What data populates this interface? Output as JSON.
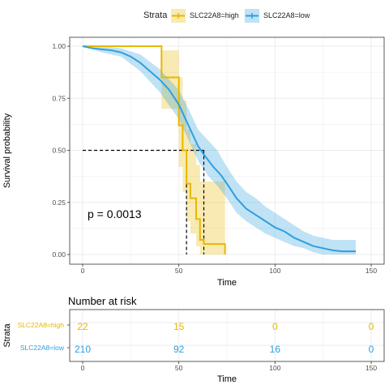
{
  "legend": {
    "title": "Strata",
    "items": [
      {
        "label": "SLC22A8=high",
        "color": "#E7B800"
      },
      {
        "label": "SLC22A8=low",
        "color": "#2E9FDF"
      }
    ]
  },
  "annotation": {
    "pvalue": "p = 0.0013"
  },
  "chart_data": [
    {
      "type": "line",
      "kind": "kaplan-meier survival curve with confidence bands",
      "xlabel": "Time",
      "ylabel": "Survival probability",
      "xlim": [
        0,
        150
      ],
      "ylim": [
        0,
        1
      ],
      "x_ticks": [
        "0",
        "50",
        "100",
        "150"
      ],
      "y_ticks": [
        "0.00",
        "0.25",
        "0.50",
        "0.75",
        "1.00"
      ],
      "grid": true,
      "legend_position": "top",
      "median_line": {
        "y": 0.5,
        "x_medians": [
          54,
          63
        ]
      },
      "series": [
        {
          "name": "SLC22A8=high",
          "color": "#E7B800",
          "points": [
            [
              0,
              1.0
            ],
            [
              41,
              1.0
            ],
            [
              41,
              0.85
            ],
            [
              50,
              0.85
            ],
            [
              50,
              0.62
            ],
            [
              52,
              0.62
            ],
            [
              52,
              0.5
            ],
            [
              54,
              0.5
            ],
            [
              54,
              0.34
            ],
            [
              56,
              0.34
            ],
            [
              56,
              0.27
            ],
            [
              59,
              0.27
            ],
            [
              59,
              0.17
            ],
            [
              61,
              0.17
            ],
            [
              61,
              0.07
            ],
            [
              63,
              0.07
            ],
            [
              63,
              0.05
            ],
            [
              74,
              0.05
            ],
            [
              74,
              0.0
            ]
          ],
          "ci_upper": [
            [
              0,
              1.0
            ],
            [
              41,
              1.0
            ],
            [
              41,
              0.98
            ],
            [
              50,
              0.98
            ],
            [
              50,
              0.85
            ],
            [
              52,
              0.85
            ],
            [
              52,
              0.74
            ],
            [
              54,
              0.74
            ],
            [
              54,
              0.6
            ],
            [
              56,
              0.6
            ],
            [
              56,
              0.53
            ],
            [
              59,
              0.53
            ],
            [
              59,
              0.43
            ],
            [
              61,
              0.43
            ],
            [
              61,
              0.35
            ],
            [
              74,
              0.35
            ]
          ],
          "ci_lower": [
            [
              0,
              1.0
            ],
            [
              41,
              1.0
            ],
            [
              41,
              0.7
            ],
            [
              50,
              0.7
            ],
            [
              50,
              0.42
            ],
            [
              52,
              0.42
            ],
            [
              52,
              0.3
            ],
            [
              54,
              0.3
            ],
            [
              54,
              0.16
            ],
            [
              56,
              0.16
            ],
            [
              56,
              0.1
            ],
            [
              59,
              0.1
            ],
            [
              59,
              0.04
            ],
            [
              61,
              0.04
            ],
            [
              61,
              0.0
            ],
            [
              74,
              0.0
            ]
          ]
        },
        {
          "name": "SLC22A8=low",
          "color": "#2E9FDF",
          "points": [
            [
              0,
              1.0
            ],
            [
              5,
              0.99
            ],
            [
              10,
              0.985
            ],
            [
              15,
              0.98
            ],
            [
              20,
              0.97
            ],
            [
              25,
              0.95
            ],
            [
              30,
              0.92
            ],
            [
              35,
              0.88
            ],
            [
              40,
              0.84
            ],
            [
              45,
              0.79
            ],
            [
              50,
              0.72
            ],
            [
              55,
              0.62
            ],
            [
              60,
              0.52
            ],
            [
              63,
              0.48
            ],
            [
              68,
              0.42
            ],
            [
              72,
              0.38
            ],
            [
              75,
              0.34
            ],
            [
              80,
              0.27
            ],
            [
              85,
              0.22
            ],
            [
              90,
              0.19
            ],
            [
              95,
              0.16
            ],
            [
              100,
              0.13
            ],
            [
              105,
              0.11
            ],
            [
              110,
              0.08
            ],
            [
              115,
              0.06
            ],
            [
              120,
              0.04
            ],
            [
              125,
              0.03
            ],
            [
              130,
              0.02
            ],
            [
              135,
              0.015
            ],
            [
              142,
              0.015
            ]
          ],
          "ci_upper": [
            [
              0,
              1.0
            ],
            [
              10,
              1.0
            ],
            [
              20,
              0.99
            ],
            [
              30,
              0.96
            ],
            [
              40,
              0.89
            ],
            [
              50,
              0.79
            ],
            [
              55,
              0.7
            ],
            [
              60,
              0.6
            ],
            [
              65,
              0.55
            ],
            [
              70,
              0.5
            ],
            [
              75,
              0.42
            ],
            [
              80,
              0.35
            ],
            [
              85,
              0.3
            ],
            [
              90,
              0.27
            ],
            [
              95,
              0.23
            ],
            [
              100,
              0.2
            ],
            [
              105,
              0.17
            ],
            [
              110,
              0.14
            ],
            [
              115,
              0.11
            ],
            [
              120,
              0.09
            ],
            [
              125,
              0.08
            ],
            [
              130,
              0.07
            ],
            [
              135,
              0.07
            ],
            [
              142,
              0.07
            ]
          ],
          "ci_lower": [
            [
              0,
              1.0
            ],
            [
              10,
              0.97
            ],
            [
              20,
              0.95
            ],
            [
              30,
              0.88
            ],
            [
              40,
              0.78
            ],
            [
              50,
              0.65
            ],
            [
              55,
              0.55
            ],
            [
              60,
              0.45
            ],
            [
              65,
              0.38
            ],
            [
              70,
              0.33
            ],
            [
              75,
              0.27
            ],
            [
              80,
              0.2
            ],
            [
              85,
              0.16
            ],
            [
              90,
              0.13
            ],
            [
              95,
              0.1
            ],
            [
              100,
              0.08
            ],
            [
              105,
              0.06
            ],
            [
              110,
              0.04
            ],
            [
              115,
              0.03
            ],
            [
              120,
              0.01
            ],
            [
              125,
              0.0
            ],
            [
              142,
              0.0
            ]
          ]
        }
      ]
    },
    {
      "type": "table",
      "title": "Number at risk",
      "xlabel": "Time",
      "ylabel": "Strata",
      "x_ticks": [
        "0",
        "50",
        "100",
        "150"
      ],
      "x_values": [
        0,
        50,
        100,
        150
      ],
      "rows": [
        {
          "name": "SLC22A8=high",
          "color": "#E7B800",
          "values": [
            "22",
            "15",
            "0",
            "0"
          ]
        },
        {
          "name": "SLC22A8=low",
          "color": "#2E9FDF",
          "values": [
            "210",
            "92",
            "16",
            "0"
          ]
        }
      ]
    }
  ]
}
